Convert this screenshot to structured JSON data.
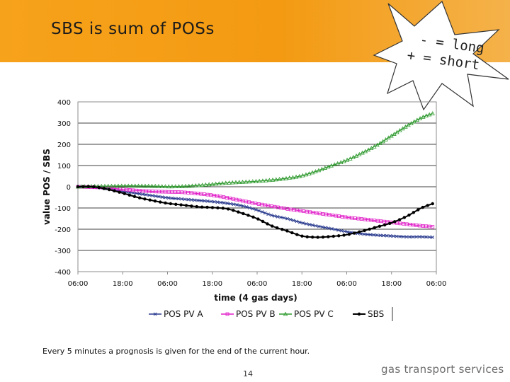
{
  "slide": {
    "title": "SBS is sum of POSs",
    "callout_line1": "- = long",
    "callout_line2": "+ = short",
    "footnote": "Every 5 minutes a prognosis is given for the end of the current hour.",
    "page_number": "14",
    "brand": "gas transport services",
    "accent_color": "#f7a21b"
  },
  "chart_data": {
    "type": "line",
    "title": "",
    "xlabel": "time (4 gas days)",
    "ylabel": "value POS / SBS",
    "x_ticks": [
      "06:00",
      "18:00",
      "06:00",
      "18:00",
      "06:00",
      "18:00",
      "06:00",
      "18:00",
      "06:00"
    ],
    "x_unit": "hours since first 06:00 tick",
    "xlim": [
      0,
      96
    ],
    "ylim": [
      -400,
      400
    ],
    "y_ticks": [
      400,
      300,
      200,
      100,
      0,
      -100,
      -200,
      -300,
      -400
    ],
    "grid": "horizontal major at each 100",
    "legend": "bottom",
    "series": [
      {
        "name": "POS PV A",
        "color": "#2b3c8f",
        "marker": "x",
        "x": [
          0,
          4,
          8,
          12,
          16,
          20,
          24,
          28,
          32,
          36,
          40,
          44,
          48,
          52,
          56,
          60,
          64,
          68,
          72,
          76,
          80,
          84,
          88,
          92,
          95
        ],
        "y": [
          0,
          -2,
          -10,
          -22,
          -32,
          -42,
          -52,
          -58,
          -64,
          -70,
          -78,
          -90,
          -110,
          -135,
          -150,
          -170,
          -185,
          -198,
          -212,
          -222,
          -228,
          -232,
          -236,
          -236,
          -238
        ]
      },
      {
        "name": "POS PV B",
        "color": "#e11ec8",
        "marker": "square",
        "x": [
          0,
          4,
          8,
          12,
          16,
          20,
          24,
          28,
          32,
          36,
          40,
          44,
          48,
          52,
          56,
          60,
          64,
          68,
          72,
          76,
          80,
          84,
          88,
          92,
          95
        ],
        "y": [
          0,
          -2,
          -5,
          -12,
          -18,
          -22,
          -24,
          -26,
          -32,
          -40,
          -52,
          -66,
          -80,
          -92,
          -104,
          -114,
          -124,
          -134,
          -144,
          -152,
          -160,
          -168,
          -176,
          -184,
          -188
        ]
      },
      {
        "name": "POS PV C",
        "color": "#2f9a2f",
        "marker": "triangle",
        "x": [
          0,
          4,
          8,
          12,
          16,
          20,
          24,
          28,
          32,
          36,
          40,
          44,
          48,
          52,
          56,
          60,
          64,
          68,
          72,
          76,
          80,
          84,
          88,
          92,
          95
        ],
        "y": [
          0,
          2,
          3,
          4,
          4,
          3,
          1,
          2,
          6,
          12,
          18,
          22,
          26,
          32,
          40,
          52,
          74,
          100,
          125,
          158,
          195,
          240,
          285,
          325,
          345
        ]
      },
      {
        "name": "SBS",
        "color": "#000000",
        "marker": "circle",
        "x": [
          0,
          4,
          8,
          12,
          16,
          20,
          24,
          28,
          32,
          36,
          40,
          44,
          48,
          52,
          56,
          60,
          64,
          68,
          72,
          76,
          80,
          84,
          88,
          92,
          95
        ],
        "y": [
          0,
          0,
          -12,
          -30,
          -50,
          -65,
          -78,
          -86,
          -94,
          -98,
          -104,
          -125,
          -150,
          -185,
          -208,
          -232,
          -238,
          -234,
          -226,
          -210,
          -190,
          -170,
          -140,
          -100,
          -80
        ]
      }
    ]
  }
}
